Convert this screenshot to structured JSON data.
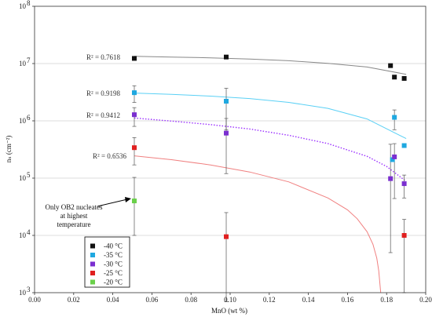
{
  "chart_data": {
    "type": "scatter",
    "title": "",
    "xlabel": "MnO (wt %)",
    "ylabel": "nₛ (cm⁻²)",
    "xlim": [
      0.0,
      0.2
    ],
    "ylim_log10": [
      3,
      8
    ],
    "y_scale": "log",
    "grid": "horizontal",
    "legend_position": "bottom-left",
    "x_ticks": [
      "0.00",
      "0.02",
      "0.04",
      "0.06",
      "0.08",
      "0.10",
      "0.12",
      "0.14",
      "0.16",
      "0.18",
      "0.20"
    ],
    "y_ticks": [
      {
        "base": "10",
        "exp": "3",
        "value": 1000
      },
      {
        "base": "10",
        "exp": "4",
        "value": 10000
      },
      {
        "base": "10",
        "exp": "5",
        "value": 100000
      },
      {
        "base": "10",
        "exp": "6",
        "value": 1000000
      },
      {
        "base": "10",
        "exp": "7",
        "value": 10000000
      },
      {
        "base": "10",
        "exp": "8",
        "value": 100000000
      }
    ],
    "series": [
      {
        "name": "-40 °C",
        "color": "#111111",
        "points": [
          {
            "x": 0.051,
            "y": 12300000
          },
          {
            "x": 0.098,
            "y": 13000000
          },
          {
            "x": 0.182,
            "y": 9200000
          },
          {
            "x": 0.184,
            "y": 5800000
          },
          {
            "x": 0.189,
            "y": 5500000
          }
        ],
        "fit": {
          "type": "power",
          "color": "#888888",
          "dotted": false,
          "x_end": 0.19,
          "r2": "R² = 0.7618",
          "curve": [
            [
              0.051,
              13400000
            ],
            [
              0.07,
              13000000
            ],
            [
              0.09,
              12600000
            ],
            [
              0.11,
              12000000
            ],
            [
              0.13,
              11200000
            ],
            [
              0.15,
              10100000
            ],
            [
              0.17,
              8700000
            ],
            [
              0.19,
              6500000
            ]
          ]
        }
      },
      {
        "name": "-35 °C",
        "color": "#1fa8e0",
        "points": [
          {
            "x": 0.051,
            "y": 3100000,
            "err": [
              2100000,
              4100000
            ]
          },
          {
            "x": 0.098,
            "y": 2200000,
            "err": [
              700000,
              3700000
            ]
          },
          {
            "x": 0.183,
            "y": 210000
          },
          {
            "x": 0.184,
            "y": 1150000,
            "err": [
              700000,
              1550000
            ]
          },
          {
            "x": 0.189,
            "y": 370000
          }
        ],
        "fit": {
          "type": "power",
          "color": "#5ad0f5",
          "dotted": false,
          "x_end": 0.19,
          "r2": "R² = 0.9198",
          "curve": [
            [
              0.051,
              3050000
            ],
            [
              0.07,
              2900000
            ],
            [
              0.09,
              2700000
            ],
            [
              0.11,
              2450000
            ],
            [
              0.13,
              2100000
            ],
            [
              0.15,
              1650000
            ],
            [
              0.17,
              1080000
            ],
            [
              0.19,
              490000
            ]
          ]
        }
      },
      {
        "name": "-30 °C",
        "color": "#7b2fd0",
        "points": [
          {
            "x": 0.051,
            "y": 1280000,
            "err": [
              800000,
              1700000
            ]
          },
          {
            "x": 0.098,
            "y": 610000,
            "err": [
              120000,
              1100000
            ]
          },
          {
            "x": 0.182,
            "y": 98000,
            "err": [
              5000,
              390000
            ]
          },
          {
            "x": 0.184,
            "y": 235000,
            "err": [
              44000,
              400000
            ]
          },
          {
            "x": 0.189,
            "y": 80000,
            "err": [
              45000,
              113000
            ]
          }
        ],
        "fit": {
          "type": "power",
          "color": "#9b30ff",
          "dotted": true,
          "x_end": 0.19,
          "r2": "R² = 0.9412",
          "curve": [
            [
              0.051,
              1120000
            ],
            [
              0.07,
              990000
            ],
            [
              0.09,
              860000
            ],
            [
              0.11,
              720000
            ],
            [
              0.13,
              560000
            ],
            [
              0.15,
              400000
            ],
            [
              0.17,
              240000
            ],
            [
              0.18,
              160000
            ],
            [
              0.19,
              88000
            ]
          ]
        }
      },
      {
        "name": "-25 °C",
        "color": "#e02020",
        "points": [
          {
            "x": 0.051,
            "y": 340000,
            "err": [
              170000,
              510000
            ]
          },
          {
            "x": 0.098,
            "y": 9500,
            "err": [
              700,
              25000
            ]
          },
          {
            "x": 0.189,
            "y": 10000,
            "err": [
              1000,
              19000
            ]
          }
        ],
        "fit": {
          "type": "power",
          "color": "#f08080",
          "dotted": false,
          "x_end": 0.177,
          "r2": "R² = 0.6536",
          "curve": [
            [
              0.051,
              245000
            ],
            [
              0.07,
              210000
            ],
            [
              0.09,
              170000
            ],
            [
              0.11,
              128000
            ],
            [
              0.13,
              86000
            ],
            [
              0.15,
              45000
            ],
            [
              0.16,
              28000
            ],
            [
              0.165,
              19500
            ],
            [
              0.17,
              11600
            ],
            [
              0.173,
              7000
            ],
            [
              0.175,
              4000
            ],
            [
              0.176,
              2400
            ],
            [
              0.177,
              1000
            ]
          ]
        }
      },
      {
        "name": "-20 °C",
        "color": "#6ad04a",
        "points": [
          {
            "x": 0.051,
            "y": 40000,
            "err": [
              10000,
              103000
            ]
          }
        ]
      }
    ],
    "annotation": {
      "lines": [
        "Only  OB2 nucleates",
        "at highest",
        "temperature"
      ]
    }
  }
}
